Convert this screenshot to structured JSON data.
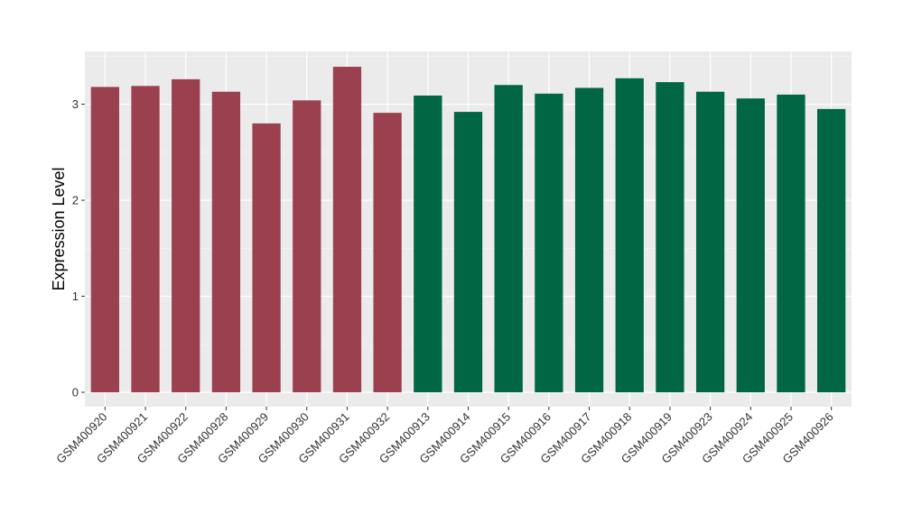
{
  "chart_data": {
    "type": "bar",
    "title": "",
    "xlabel": "",
    "ylabel": "Expression Level",
    "ylim": [
      -0.15,
      3.55
    ],
    "yticks": [
      0,
      1,
      2,
      3
    ],
    "grid": true,
    "legend": "none",
    "categories": [
      "GSM400920",
      "GSM400921",
      "GSM400922",
      "GSM400928",
      "GSM400929",
      "GSM400930",
      "GSM400931",
      "GSM400932",
      "GSM400913",
      "GSM400914",
      "GSM400915",
      "GSM400916",
      "GSM400917",
      "GSM400918",
      "GSM400919",
      "GSM400923",
      "GSM400924",
      "GSM400925",
      "GSM400926"
    ],
    "values": [
      3.18,
      3.19,
      3.26,
      3.13,
      2.8,
      3.04,
      3.39,
      2.91,
      3.09,
      2.92,
      3.2,
      3.11,
      3.17,
      3.27,
      3.23,
      3.13,
      3.06,
      3.1,
      2.95
    ],
    "colors": [
      "#9B404F",
      "#9B404F",
      "#9B404F",
      "#9B404F",
      "#9B404F",
      "#9B404F",
      "#9B404F",
      "#9B404F",
      "#006643",
      "#006643",
      "#006643",
      "#006643",
      "#006643",
      "#006643",
      "#006643",
      "#006643",
      "#006643",
      "#006643",
      "#006643"
    ]
  }
}
